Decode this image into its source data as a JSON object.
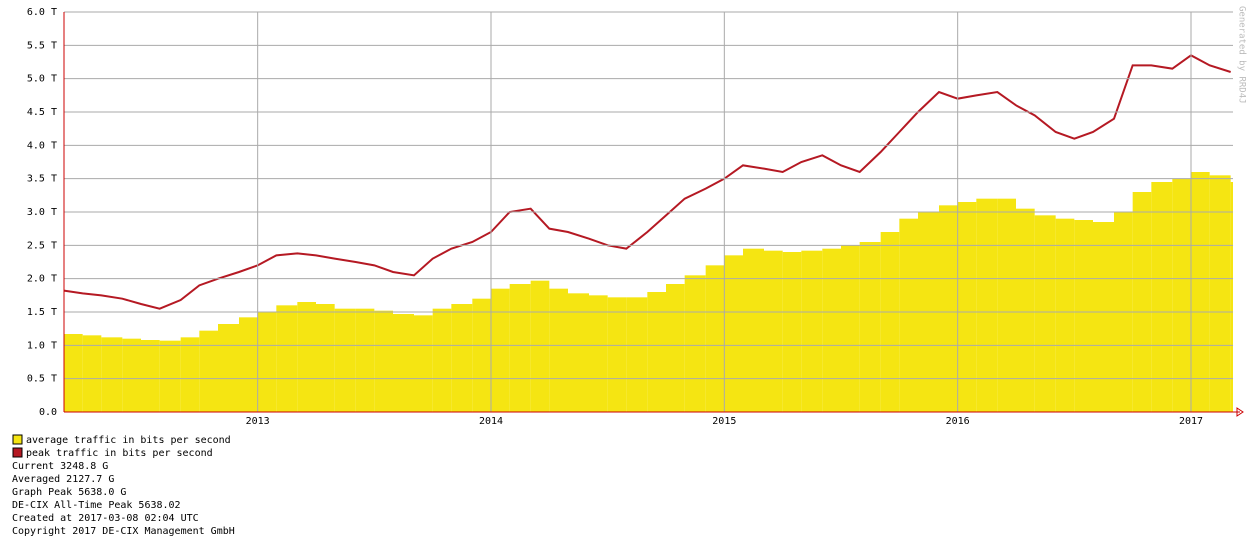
{
  "chart_data": {
    "type": "traffic",
    "x": [
      2012.17,
      2012.25,
      2012.33,
      2012.42,
      2012.5,
      2012.58,
      2012.67,
      2012.75,
      2012.83,
      2012.92,
      2013.0,
      2013.08,
      2013.17,
      2013.25,
      2013.33,
      2013.42,
      2013.5,
      2013.58,
      2013.67,
      2013.75,
      2013.83,
      2013.92,
      2014.0,
      2014.08,
      2014.17,
      2014.25,
      2014.33,
      2014.42,
      2014.5,
      2014.58,
      2014.67,
      2014.75,
      2014.83,
      2014.92,
      2015.0,
      2015.08,
      2015.17,
      2015.25,
      2015.33,
      2015.42,
      2015.5,
      2015.58,
      2015.67,
      2015.75,
      2015.83,
      2015.92,
      2016.0,
      2016.08,
      2016.17,
      2016.25,
      2016.33,
      2016.42,
      2016.5,
      2016.58,
      2016.67,
      2016.75,
      2016.83,
      2016.92,
      2017.0,
      2017.08,
      2017.17
    ],
    "series": [
      {
        "name": "average traffic in bits per second",
        "color": "#f5e512",
        "values": [
          1.17,
          1.15,
          1.12,
          1.1,
          1.08,
          1.07,
          1.12,
          1.22,
          1.32,
          1.42,
          1.5,
          1.6,
          1.65,
          1.62,
          1.55,
          1.55,
          1.52,
          1.47,
          1.45,
          1.55,
          1.62,
          1.7,
          1.85,
          1.92,
          1.97,
          1.85,
          1.78,
          1.75,
          1.72,
          1.72,
          1.8,
          1.92,
          2.05,
          2.2,
          2.35,
          2.45,
          2.42,
          2.4,
          2.42,
          2.45,
          2.5,
          2.55,
          2.7,
          2.9,
          3.0,
          3.1,
          3.15,
          3.2,
          3.2,
          3.05,
          2.95,
          2.9,
          2.88,
          2.85,
          3.0,
          3.3,
          3.45,
          3.5,
          3.6,
          3.55,
          3.45
        ]
      },
      {
        "name": "peak traffic in bits per second",
        "color": "#b51923",
        "values": [
          1.82,
          1.78,
          1.75,
          1.7,
          1.62,
          1.55,
          1.68,
          1.9,
          2.0,
          2.1,
          2.2,
          2.35,
          2.38,
          2.35,
          2.3,
          2.25,
          2.2,
          2.1,
          2.05,
          2.3,
          2.45,
          2.55,
          2.7,
          3.0,
          3.05,
          2.75,
          2.7,
          2.6,
          2.5,
          2.45,
          2.7,
          2.95,
          3.2,
          3.35,
          3.5,
          3.7,
          3.65,
          3.6,
          3.75,
          3.85,
          3.7,
          3.6,
          3.9,
          4.2,
          4.5,
          4.8,
          4.7,
          4.75,
          4.8,
          4.6,
          4.45,
          4.2,
          4.1,
          4.2,
          4.4,
          5.2,
          5.2,
          5.15,
          5.35,
          5.2,
          5.1
        ]
      }
    ],
    "xlim": [
      2012.17,
      2017.18
    ],
    "xticks": [
      2013,
      2014,
      2015,
      2016,
      2017
    ],
    "ylim": [
      0,
      6
    ],
    "yticks": [
      {
        "value": 0,
        "label": "0.0"
      },
      {
        "value": 0.5,
        "label": "0.5 T"
      },
      {
        "value": 1,
        "label": "1.0 T"
      },
      {
        "value": 1.5,
        "label": "1.5 T"
      },
      {
        "value": 2,
        "label": "2.0 T"
      },
      {
        "value": 2.5,
        "label": "2.5 T"
      },
      {
        "value": 3,
        "label": "3.0 T"
      },
      {
        "value": 3.5,
        "label": "3.5 T"
      },
      {
        "value": 4,
        "label": "4.0 T"
      },
      {
        "value": 4.5,
        "label": "4.5 T"
      },
      {
        "value": 5,
        "label": "5.0 T"
      },
      {
        "value": 5.5,
        "label": "5.5 T"
      },
      {
        "value": 6,
        "label": "6.0 T"
      }
    ],
    "grid": true,
    "watermark": "Generated by RRD4J",
    "notes": [
      "Current 3248.8 G",
      "Averaged 2127.7 G",
      "Graph Peak 5638.0 G",
      "DE-CIX All-Time Peak 5638.02",
      "Created at 2017-03-08 02:04 UTC",
      "Copyright 2017 DE-CIX Management GmbH"
    ]
  }
}
